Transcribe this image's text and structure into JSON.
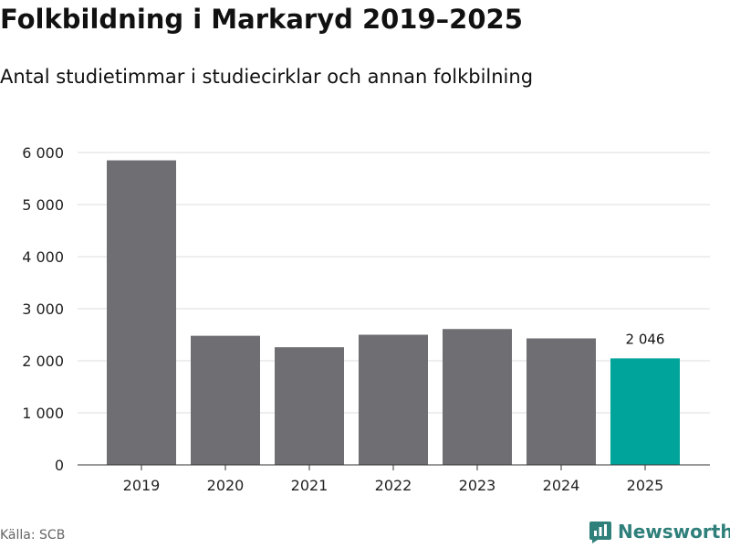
{
  "header": {
    "title": "Folkbildning i Markaryd 2019–2025",
    "subtitle": "Antal studietimmar i studiecirklar och annan folkbilning"
  },
  "chart_data": {
    "type": "bar",
    "categories": [
      "2019",
      "2020",
      "2021",
      "2022",
      "2023",
      "2024",
      "2025"
    ],
    "values": [
      5850,
      2480,
      2260,
      2500,
      2610,
      2430,
      2046
    ],
    "ylim": [
      0,
      6000
    ],
    "yticks": [
      0,
      1000,
      2000,
      3000,
      4000,
      5000,
      6000
    ],
    "ytick_labels": [
      "0",
      "1 000",
      "2 000",
      "3 000",
      "4 000",
      "5 000",
      "6 000"
    ],
    "grid": true,
    "highlight_index": 6,
    "highlight_label": "2 046",
    "colors": {
      "bar": "#6e6e73",
      "highlight": "#00a49a",
      "grid": "#dddddd",
      "axis": "#333333"
    }
  },
  "footer": {
    "source": "Källa: SCB",
    "brand": "Newsworthy",
    "brand_icon": "newsworthy-logo-icon"
  }
}
